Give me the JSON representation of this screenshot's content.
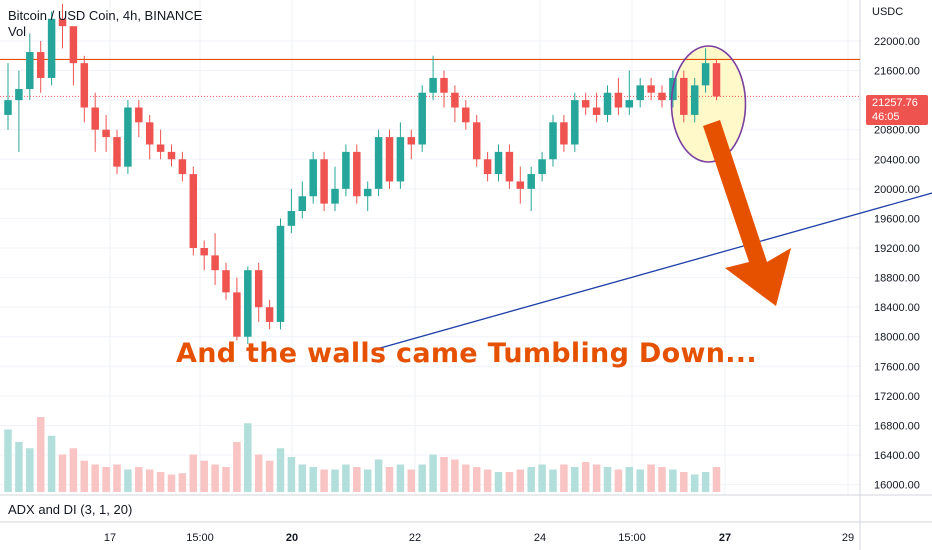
{
  "header": {
    "symbol": "Bitcoin / USD Coin, 4h, BINANCE",
    "volume_label": "Vol",
    "indicator_label": "ADX and DI (3, 1, 20)"
  },
  "price_axis": {
    "currency": "USDC",
    "current_price": "21257.76",
    "countdown": "46:05"
  },
  "annotation": "And the walls came Tumbling Down...",
  "colors": {
    "up": "#26a69a",
    "down": "#ef5350",
    "up_volume": "#b2dfdb",
    "down_volume": "#f8c4c4",
    "resistance": "#e65100",
    "trendline": "#1e3fa8",
    "arrow": "#e65100",
    "highlight_fill": "#fff8c4",
    "highlight_ring": "#7b3fa0"
  },
  "chart_data": {
    "type": "candlestick",
    "title": "Bitcoin / USD Coin, 4h, BINANCE",
    "ylabel": "USDC",
    "ylim": [
      15900,
      22500
    ],
    "ytick_labels": [
      "16000.00",
      "16400.00",
      "16800.00",
      "17200.00",
      "17600.00",
      "18000.00",
      "18400.00",
      "18800.00",
      "19200.00",
      "19600.00",
      "20000.00",
      "20400.00",
      "20800.00",
      "21200.00",
      "21600.00",
      "22000.00"
    ],
    "x_tick_labels": [
      "17",
      "15:00",
      "20",
      "22",
      "24",
      "15:00",
      "27",
      "29"
    ],
    "resistance_level": 21750,
    "trendline": {
      "from": {
        "bar": 34,
        "price": 17900
      },
      "to": {
        "bar": 122,
        "price": 21550
      }
    },
    "candles": [
      [
        21000,
        21200,
        21700,
        20800
      ],
      [
        21200,
        21350,
        21600,
        20500
      ],
      [
        21350,
        21850,
        22100,
        21200
      ],
      [
        21850,
        21500,
        22000,
        21300
      ],
      [
        21500,
        22300,
        22400,
        21400
      ],
      [
        22300,
        22200,
        22500,
        21900
      ],
      [
        22200,
        21700,
        22100,
        21400
      ],
      [
        21700,
        21100,
        21800,
        20900
      ],
      [
        21100,
        20800,
        21300,
        20500
      ],
      [
        20800,
        20700,
        21000,
        20500
      ],
      [
        20700,
        20300,
        20800,
        20200
      ],
      [
        20300,
        21100,
        21200,
        20200
      ],
      [
        21100,
        20900,
        21200,
        20700
      ],
      [
        20900,
        20600,
        21000,
        20400
      ],
      [
        20600,
        20500,
        20800,
        20400
      ],
      [
        20500,
        20400,
        20600,
        20300
      ],
      [
        20400,
        20200,
        20500,
        20100
      ],
      [
        20200,
        19200,
        20300,
        19100
      ],
      [
        19200,
        19100,
        19300,
        18900
      ],
      [
        19100,
        18900,
        19400,
        18700
      ],
      [
        18900,
        18600,
        19000,
        18500
      ],
      [
        18600,
        18000,
        18800,
        17950
      ],
      [
        18000,
        18900,
        18950,
        17900
      ],
      [
        18900,
        18400,
        19000,
        18200
      ],
      [
        18400,
        18200,
        18500,
        18100
      ],
      [
        18200,
        19500,
        19600,
        18100
      ],
      [
        19500,
        19700,
        20000,
        19400
      ],
      [
        19700,
        19900,
        20100,
        19600
      ],
      [
        19900,
        20400,
        20500,
        19800
      ],
      [
        20400,
        19800,
        20500,
        19700
      ],
      [
        19800,
        20000,
        20300,
        19700
      ],
      [
        20000,
        20500,
        20600,
        19900
      ],
      [
        20500,
        19900,
        20600,
        19800
      ],
      [
        19900,
        20000,
        20100,
        19700
      ],
      [
        20000,
        20700,
        20800,
        19900
      ],
      [
        20700,
        20100,
        20800,
        20000
      ],
      [
        20100,
        20700,
        20900,
        20000
      ],
      [
        20700,
        20600,
        20800,
        20400
      ],
      [
        20600,
        21300,
        21400,
        20500
      ],
      [
        21300,
        21500,
        21800,
        21200
      ],
      [
        21500,
        21300,
        21600,
        21100
      ],
      [
        21300,
        21100,
        21400,
        20900
      ],
      [
        21100,
        20900,
        21200,
        20800
      ],
      [
        20900,
        20400,
        21000,
        20300
      ],
      [
        20400,
        20200,
        20500,
        20100
      ],
      [
        20200,
        20500,
        20600,
        20100
      ],
      [
        20500,
        20100,
        20600,
        20000
      ],
      [
        20100,
        20000,
        20300,
        19800
      ],
      [
        20000,
        20200,
        20300,
        19700
      ],
      [
        20200,
        20400,
        20500,
        20100
      ],
      [
        20400,
        20900,
        21000,
        20300
      ],
      [
        20900,
        20600,
        21000,
        20500
      ],
      [
        20600,
        21200,
        21300,
        20500
      ],
      [
        21200,
        21100,
        21300,
        21000
      ],
      [
        21100,
        21000,
        21300,
        20900
      ],
      [
        21000,
        21300,
        21400,
        20900
      ],
      [
        21300,
        21100,
        21500,
        21000
      ],
      [
        21100,
        21200,
        21600,
        21000
      ],
      [
        21200,
        21400,
        21500,
        21100
      ],
      [
        21400,
        21300,
        21500,
        21200
      ],
      [
        21300,
        21200,
        21400,
        21100
      ],
      [
        21200,
        21500,
        21600,
        21100
      ],
      [
        21500,
        21000,
        21600,
        20900
      ],
      [
        21000,
        21400,
        21500,
        20900
      ],
      [
        21400,
        21700,
        21900,
        21300
      ],
      [
        21700,
        21250,
        21750,
        21200
      ]
    ],
    "volume": {
      "ylim": [
        0,
        100
      ],
      "values": [
        50,
        40,
        35,
        60,
        45,
        30,
        35,
        25,
        22,
        20,
        22,
        18,
        20,
        18,
        16,
        14,
        15,
        30,
        25,
        22,
        20,
        40,
        55,
        30,
        25,
        35,
        28,
        22,
        20,
        18,
        18,
        22,
        20,
        18,
        26,
        20,
        22,
        18,
        22,
        30,
        28,
        26,
        22,
        20,
        18,
        16,
        16,
        18,
        20,
        22,
        18,
        22,
        20,
        24,
        22,
        20,
        18,
        20,
        18,
        22,
        20,
        18,
        16,
        14,
        16,
        20
      ]
    }
  }
}
